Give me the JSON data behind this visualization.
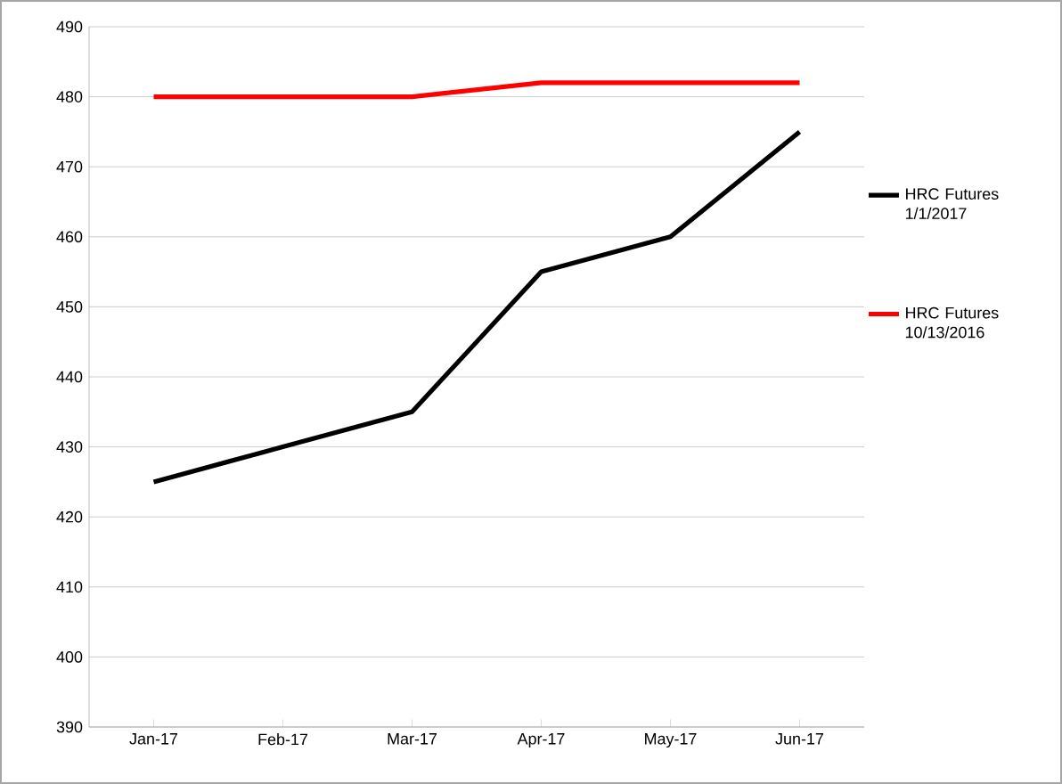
{
  "chart_data": {
    "type": "line",
    "categories": [
      "Jan-17",
      "Feb-17",
      "Mar-17",
      "Apr-17",
      "May-17",
      "Jun-17"
    ],
    "series": [
      {
        "name": "HRC Futures 1/1/2017",
        "color": "#000000",
        "values": [
          425,
          430,
          435,
          455,
          460,
          475
        ]
      },
      {
        "name": "HRC Futures 10/13/2016",
        "color": "#ff0000",
        "values": [
          480,
          480,
          480,
          482,
          482,
          482
        ]
      }
    ],
    "ylim": [
      390,
      490
    ],
    "yticks": [
      390,
      400,
      410,
      420,
      430,
      440,
      450,
      460,
      470,
      480,
      490
    ],
    "grid": "y",
    "legend": "right",
    "marker": "none",
    "line_style": "solid"
  }
}
